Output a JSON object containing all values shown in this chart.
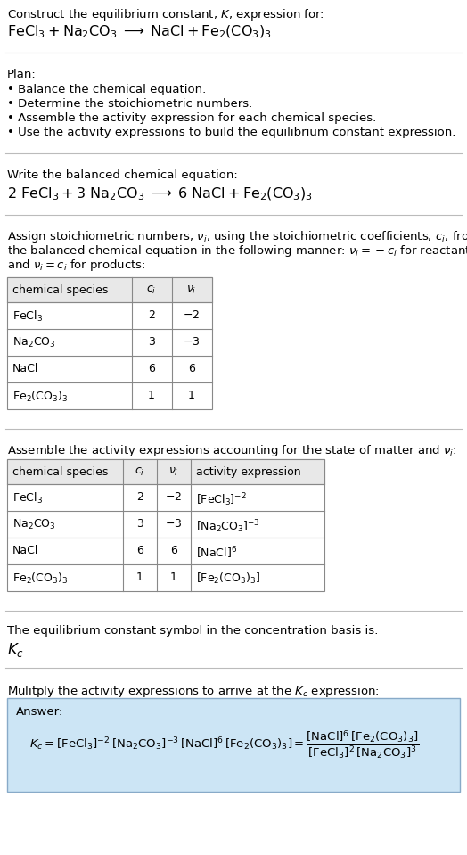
{
  "title_line1": "Construct the equilibrium constant, $K$, expression for:",
  "title_line2": "$\\mathrm{FeCl_3 + Na_2CO_3 \\;\\longrightarrow\\; NaCl + Fe_2(CO_3)_3}$",
  "plan_header": "Plan:",
  "plan_bullets": [
    "• Balance the chemical equation.",
    "• Determine the stoichiometric numbers.",
    "• Assemble the activity expression for each chemical species.",
    "• Use the activity expressions to build the equilibrium constant expression."
  ],
  "balanced_header": "Write the balanced chemical equation:",
  "balanced_eq": "$\\mathrm{2\\ FeCl_3 + 3\\ Na_2CO_3 \\;\\longrightarrow\\; 6\\ NaCl + Fe_2(CO_3)_3}$",
  "stoich_para": [
    "Assign stoichiometric numbers, $\\nu_i$, using the stoichiometric coefficients, $c_i$, from",
    "the balanced chemical equation in the following manner: $\\nu_i = -c_i$ for reactants",
    "and $\\nu_i = c_i$ for products:"
  ],
  "table1_headers": [
    "chemical species",
    "$c_i$",
    "$\\nu_i$"
  ],
  "table1_rows": [
    [
      "$\\mathrm{FeCl_3}$",
      "2",
      "$-2$"
    ],
    [
      "$\\mathrm{Na_2CO_3}$",
      "3",
      "$-3$"
    ],
    [
      "NaCl",
      "6",
      "6"
    ],
    [
      "$\\mathrm{Fe_2(CO_3)_3}$",
      "1",
      "1"
    ]
  ],
  "activity_header": "Assemble the activity expressions accounting for the state of matter and $\\nu_i$:",
  "table2_headers": [
    "chemical species",
    "$c_i$",
    "$\\nu_i$",
    "activity expression"
  ],
  "table2_rows": [
    [
      "$\\mathrm{FeCl_3}$",
      "2",
      "$-2$",
      "$[\\mathrm{FeCl_3}]^{-2}$"
    ],
    [
      "$\\mathrm{Na_2CO_3}$",
      "3",
      "$-3$",
      "$[\\mathrm{Na_2CO_3}]^{-3}$"
    ],
    [
      "NaCl",
      "6",
      "6",
      "$[\\mathrm{NaCl}]^{6}$"
    ],
    [
      "$\\mathrm{Fe_2(CO_3)_3}$",
      "1",
      "1",
      "$[\\mathrm{Fe_2(CO_3)_3}]$"
    ]
  ],
  "kc_symbol_header": "The equilibrium constant symbol in the concentration basis is:",
  "kc_symbol": "$K_c$",
  "multiply_header": "Mulitply the activity expressions to arrive at the $K_c$ expression:",
  "answer_label": "Answer:",
  "answer_eq_full": "$K_c = [\\mathrm{FeCl_3}]^{-2}\\,[\\mathrm{Na_2CO_3}]^{-3}\\,[\\mathrm{NaCl}]^{6}\\,[\\mathrm{Fe_2(CO_3)_3}] = \\dfrac{[\\mathrm{NaCl}]^{6}\\,[\\mathrm{Fe_2(CO_3)_3}]}{[\\mathrm{FeCl_3}]^{2}\\,[\\mathrm{Na_2CO_3}]^{3}}$",
  "bg_color": "#ffffff",
  "answer_box_color": "#cce5f5",
  "separator_color": "#bbbbbb",
  "table_header_bg": "#e8e8e8",
  "table_border": "#888888",
  "fig_width": 5.24,
  "fig_height": 9.59,
  "dpi": 100
}
